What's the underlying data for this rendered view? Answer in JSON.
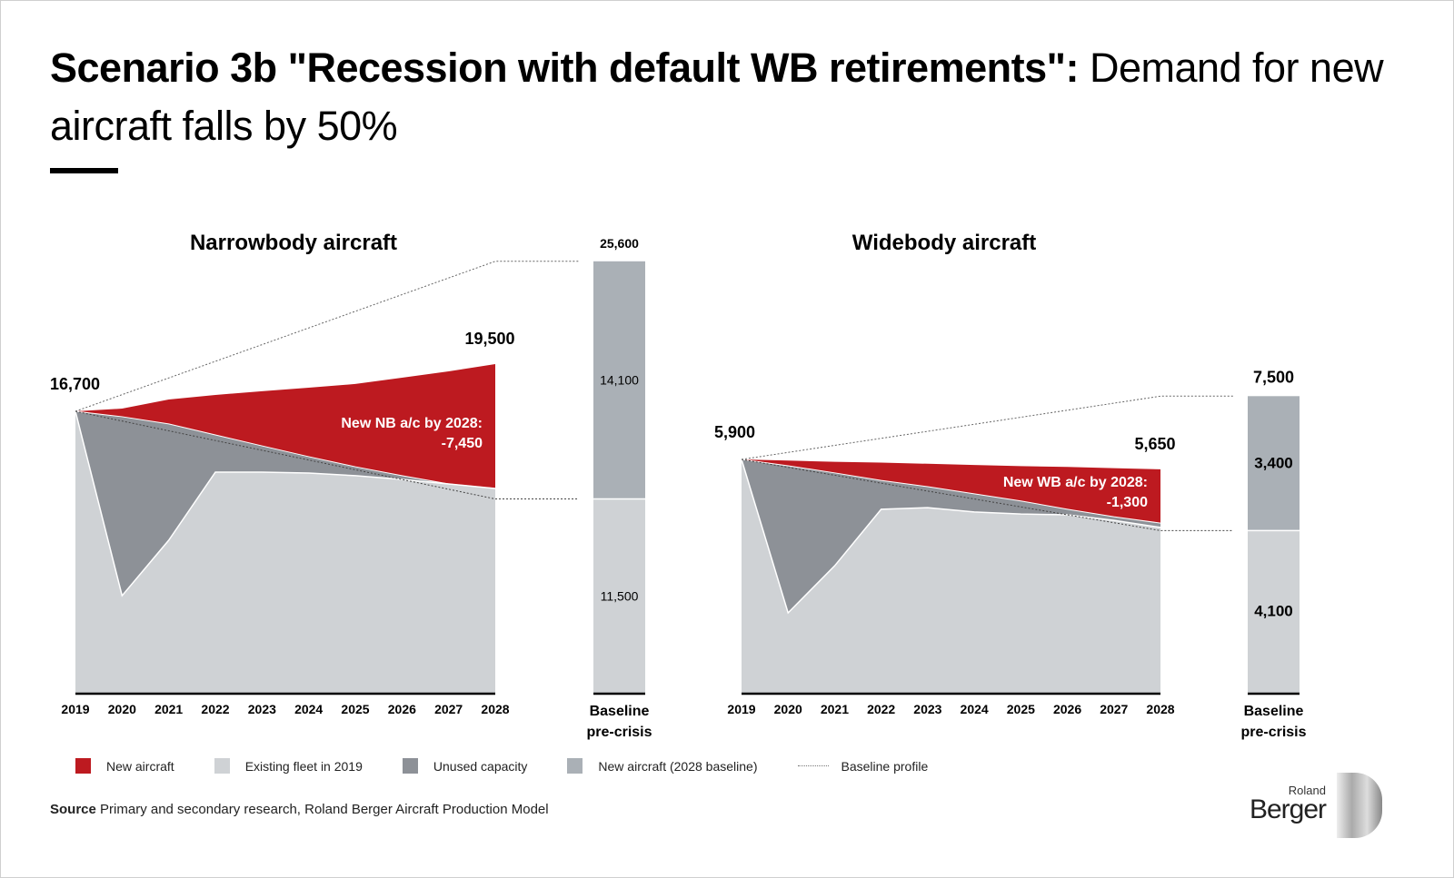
{
  "title_bold": "Scenario 3b \"Recession with default WB retirements\":",
  "title_rest": " Demand for new aircraft falls by 50%",
  "colors": {
    "new": "#bd1a20",
    "existing": "#cfd2d5",
    "unused": "#8d9197",
    "baseline_new": "#aab0b6"
  },
  "chart_data": [
    {
      "type": "area",
      "title": "Narrowbody aircraft",
      "x": [
        "2019",
        "2020",
        "2021",
        "2022",
        "2023",
        "2024",
        "2025",
        "2026",
        "2027",
        "2028"
      ],
      "series": [
        {
          "name": "Existing fleet in 2019",
          "values": [
            16700,
            5760,
            9050,
            13090,
            13090,
            13040,
            12880,
            12660,
            12390,
            12120
          ]
        },
        {
          "name": "Unused capacity (top)",
          "values": [
            16700,
            16380,
            15950,
            15300,
            14650,
            14010,
            13410,
            12880,
            12390,
            12120
          ]
        },
        {
          "name": "New aircraft (top)",
          "values": [
            16700,
            16860,
            17400,
            17670,
            17890,
            18100,
            18320,
            18690,
            19070,
            19500
          ]
        }
      ],
      "baseline_profile": [
        [
          16700,
          25600
        ],
        [
          16700,
          11500
        ]
      ],
      "labels": {
        "start": "16,700",
        "end": "19,500",
        "annotation1": "New NB a/c by 2028:",
        "annotation2": "-7,450"
      },
      "bar": {
        "label1": "Baseline",
        "label2": "pre-crisis",
        "total": 25600,
        "total_label": "25,600",
        "existing": 11500,
        "existing_label": "11,500",
        "new": 14100,
        "new_label": "14,100"
      },
      "ymax": 25600
    },
    {
      "type": "area",
      "title": "Widebody aircraft",
      "x": [
        "2019",
        "2020",
        "2021",
        "2022",
        "2023",
        "2024",
        "2025",
        "2026",
        "2027",
        "2028"
      ],
      "series": [
        {
          "name": "Existing fleet in 2019",
          "values": [
            5900,
            2020,
            3210,
            4640,
            4680,
            4570,
            4520,
            4500,
            4360,
            4180
          ]
        },
        {
          "name": "Unused capacity (top)",
          "values": [
            5900,
            5740,
            5560,
            5370,
            5210,
            5030,
            4850,
            4640,
            4450,
            4290
          ]
        },
        {
          "name": "New aircraft (top)",
          "values": [
            5900,
            5870,
            5840,
            5820,
            5790,
            5760,
            5730,
            5710,
            5680,
            5650
          ]
        }
      ],
      "baseline_profile": [
        [
          5900,
          7500
        ],
        [
          5900,
          4100
        ]
      ],
      "labels": {
        "start": "5,900",
        "end": "5,650",
        "annotation1": "New WB a/c by 2028:",
        "annotation2": "-1,300"
      },
      "bar": {
        "label1": "Baseline",
        "label2": "pre-crisis",
        "total": 7500,
        "total_label": "7,500",
        "existing": 4100,
        "existing_label": "4,100",
        "new": 3400,
        "new_label": "3,400"
      },
      "ymax": 7500
    }
  ],
  "legend": [
    "New aircraft",
    "Existing fleet in 2019",
    "Unused capacity",
    "New aircraft (2028 baseline)",
    "Baseline profile"
  ],
  "source_bold": "Source",
  "source_text": " Primary and secondary research, Roland Berger Aircraft Production Model",
  "logo": {
    "line1": "Roland",
    "line2": "Berger"
  }
}
